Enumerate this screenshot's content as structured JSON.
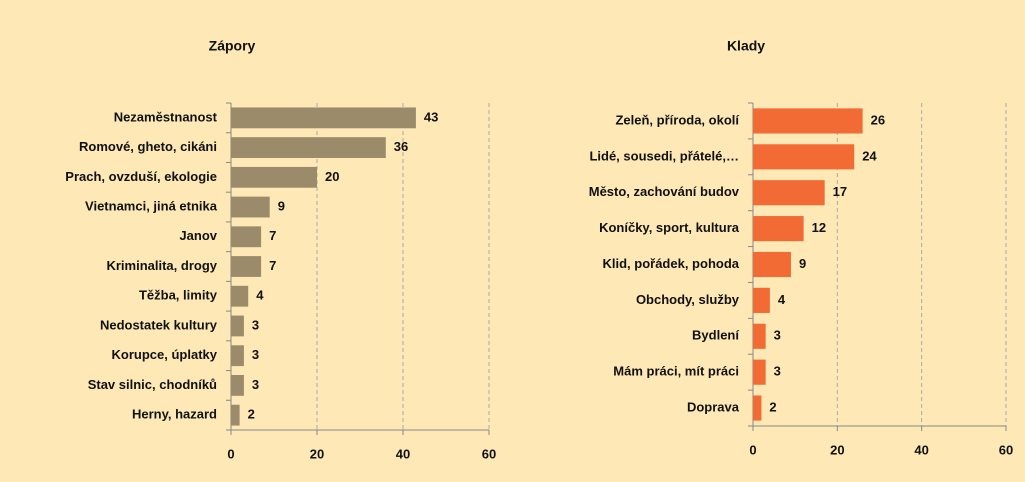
{
  "chart_data": [
    {
      "type": "bar",
      "orientation": "horizontal",
      "title": "Zápory",
      "categories": [
        "Nezaměstnanost",
        "Romové, gheto, cikáni",
        "Prach, ovzduší, ekologie",
        "Vietnamci, jiná etnika",
        "Janov",
        "Kriminalita, drogy",
        "Těžba, limity",
        "Nedostatek kultury",
        "Korupce, úplatky",
        "Stav silnic, chodníků",
        "Herny, hazard"
      ],
      "values": [
        43,
        36,
        20,
        9,
        7,
        7,
        4,
        3,
        3,
        3,
        2
      ],
      "color": "#9b8b6b",
      "xlim": [
        0,
        60
      ],
      "xticks": [
        0,
        20,
        40,
        60
      ],
      "grid": true
    },
    {
      "type": "bar",
      "orientation": "horizontal",
      "title": "Klady",
      "categories": [
        "Zeleň, příroda, okolí",
        "Lidé, sousedi, přátelé,…",
        "Město, zachování budov",
        "Koníčky, sport, kultura",
        "Klid, pořádek, pohoda",
        "Obchody, služby",
        "Bydlení",
        "Mám práci, mít práci",
        "Doprava"
      ],
      "values": [
        26,
        24,
        17,
        12,
        9,
        4,
        3,
        3,
        2
      ],
      "color": "#f26a34",
      "xlim": [
        0,
        60
      ],
      "xticks": [
        0,
        20,
        40,
        60
      ],
      "grid": true
    }
  ]
}
